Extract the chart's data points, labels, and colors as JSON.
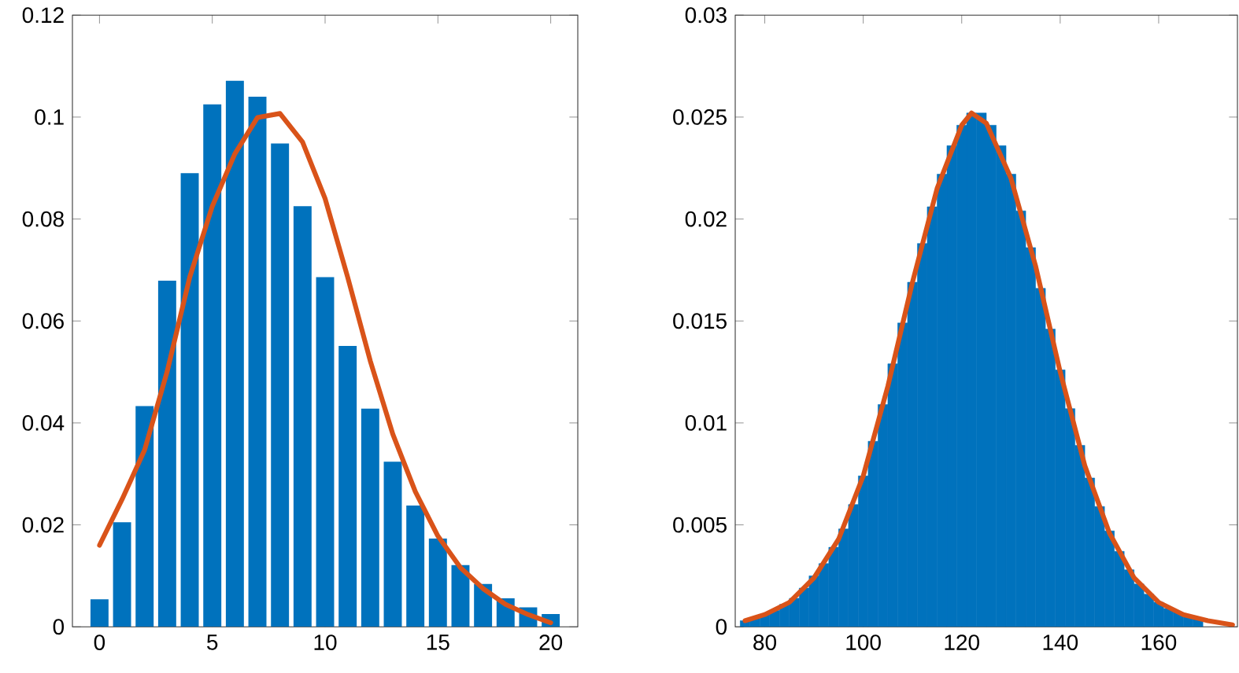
{
  "chart_data": [
    {
      "type": "bar",
      "x": [
        0,
        1,
        2,
        3,
        4,
        5,
        6,
        7,
        8,
        9,
        10,
        11,
        12,
        13,
        14,
        15,
        16,
        17,
        18,
        19,
        20
      ],
      "series": [
        {
          "type": "bar",
          "color": "#0072bd",
          "values": [
            0.0054,
            0.0205,
            0.0433,
            0.0679,
            0.089,
            0.1025,
            0.1071,
            0.104,
            0.0948,
            0.0825,
            0.0686,
            0.0551,
            0.0428,
            0.0324,
            0.0238,
            0.0173,
            0.0121,
            0.0084,
            0.0056,
            0.0038,
            0.0025
          ]
        },
        {
          "type": "line",
          "color": "#d95319",
          "values": [
            0.016,
            0.025,
            0.0347,
            0.0501,
            0.0686,
            0.0825,
            0.0928,
            0.0999,
            0.1007,
            0.0951,
            0.084,
            0.0686,
            0.0522,
            0.0378,
            0.0265,
            0.0178,
            0.0116,
            0.0075,
            0.0044,
            0.0024,
            0.0008
          ]
        }
      ],
      "xlim": [
        -1.2,
        21.2
      ],
      "ylim": [
        0,
        0.12
      ],
      "xticks": [
        0,
        5,
        10,
        15,
        20
      ],
      "yticks": [
        0,
        0.02,
        0.04,
        0.06,
        0.08,
        0.1,
        0.12
      ],
      "grid": false
    },
    {
      "type": "histogram",
      "color": "#0072bd",
      "bins": [
        75,
        77,
        79,
        81,
        83,
        85,
        87,
        89,
        91,
        93,
        95,
        97,
        99,
        101,
        103,
        105,
        107,
        109,
        111,
        113,
        115,
        117,
        119,
        121,
        123,
        125,
        127,
        129,
        131,
        133,
        135,
        137,
        139,
        141,
        143,
        145,
        147,
        149,
        151,
        153,
        155,
        157,
        159,
        161,
        163,
        165,
        167,
        169,
        171,
        173,
        175
      ],
      "values": [
        0.0003,
        0.0004,
        0.0006,
        0.0008,
        0.0011,
        0.0014,
        0.0019,
        0.0025,
        0.0031,
        0.0039,
        0.0048,
        0.006,
        0.0074,
        0.0091,
        0.0109,
        0.0129,
        0.0149,
        0.0169,
        0.0188,
        0.0206,
        0.0222,
        0.0236,
        0.0246,
        0.0252,
        0.0252,
        0.0246,
        0.0236,
        0.0222,
        0.0204,
        0.0186,
        0.0166,
        0.0146,
        0.0126,
        0.0107,
        0.0089,
        0.0073,
        0.0059,
        0.0047,
        0.0037,
        0.0028,
        0.0021,
        0.0016,
        0.0012,
        0.0009,
        0.0007,
        0.0005,
        0.0004,
        null,
        null,
        null
      ],
      "series": [
        {
          "type": "line",
          "color": "#d95319",
          "x": [
            76,
            80,
            85,
            90,
            95,
            100,
            105,
            110,
            115,
            120,
            122,
            125,
            130,
            135,
            140,
            145,
            150,
            155,
            160,
            165,
            170,
            175
          ],
          "values": [
            0.0003,
            0.0006,
            0.0012,
            0.0024,
            0.0043,
            0.0074,
            0.0118,
            0.0169,
            0.0215,
            0.0246,
            0.0252,
            0.0247,
            0.022,
            0.0177,
            0.0125,
            0.0079,
            0.0046,
            0.0024,
            0.0012,
            0.0006,
            0.0003,
            0.0001
          ]
        }
      ],
      "xlim": [
        74,
        176
      ],
      "ylim": [
        0,
        0.03
      ],
      "xticks": [
        80,
        100,
        120,
        140,
        160
      ],
      "yticks": [
        0,
        0.005,
        0.01,
        0.015,
        0.02,
        0.025,
        0.03
      ],
      "grid": false
    }
  ]
}
